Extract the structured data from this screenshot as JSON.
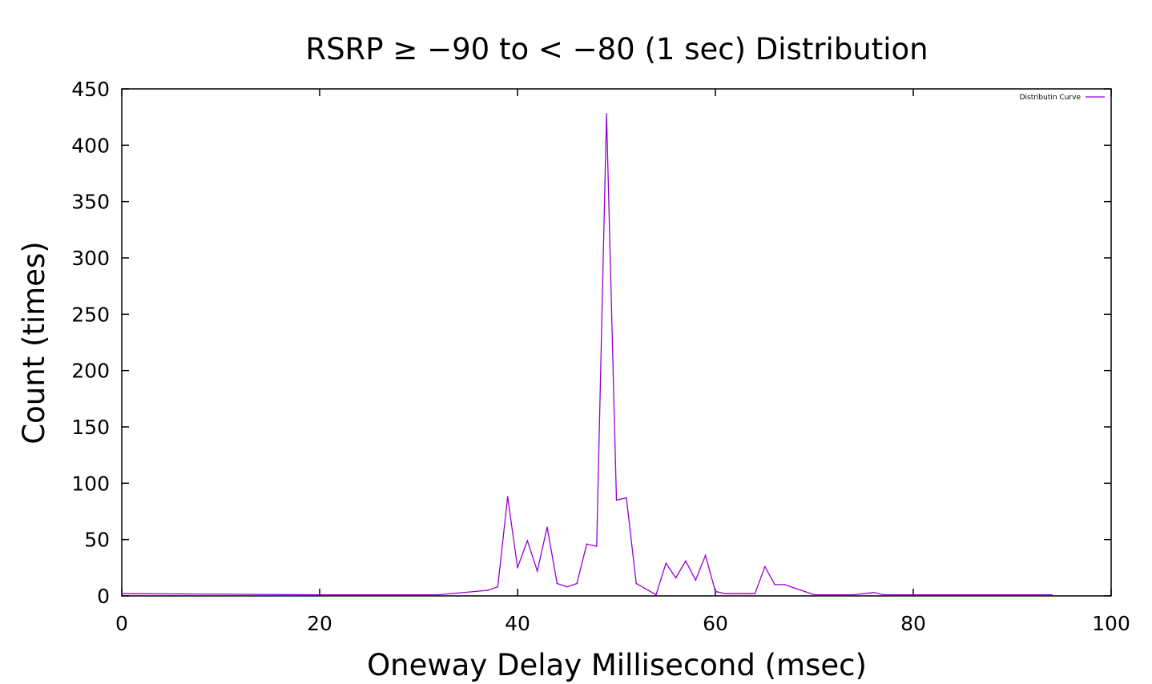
{
  "chart_data": {
    "type": "line",
    "title": "RSRP ≥ −90 to < −80 (1 sec) Distribution",
    "xlabel": "Oneway Delay Millisecond (msec)",
    "ylabel": "Count (times)",
    "xlim": [
      0,
      100
    ],
    "ylim": [
      0,
      450
    ],
    "xticks": [
      0,
      20,
      40,
      60,
      80,
      100
    ],
    "yticks": [
      0,
      50,
      100,
      150,
      200,
      250,
      300,
      350,
      400,
      450
    ],
    "grid": false,
    "legend_position": "top-right",
    "series": [
      {
        "name": "Distributin Curve",
        "color": "#9400d3",
        "x": [
          0,
          20,
          32,
          37,
          38,
          39,
          40,
          41,
          42,
          43,
          44,
          45,
          46,
          47,
          48,
          49,
          50,
          51,
          52,
          53,
          54,
          55,
          56,
          57,
          58,
          59,
          60,
          61,
          62,
          63,
          64,
          65,
          66,
          67,
          68,
          69,
          70,
          71,
          72,
          73,
          74,
          75,
          76,
          77,
          78,
          80,
          85,
          90,
          94
        ],
        "y": [
          2,
          1,
          1,
          5,
          8,
          88,
          25,
          49,
          22,
          61,
          11,
          8,
          11,
          46,
          44,
          428,
          85,
          87,
          11,
          6,
          1,
          29,
          16,
          31,
          14,
          36,
          4,
          2,
          2,
          2,
          2,
          26,
          10,
          10,
          7,
          4,
          1,
          1,
          1,
          1,
          1,
          2,
          3,
          1,
          1,
          1,
          1,
          1,
          1
        ]
      }
    ]
  }
}
